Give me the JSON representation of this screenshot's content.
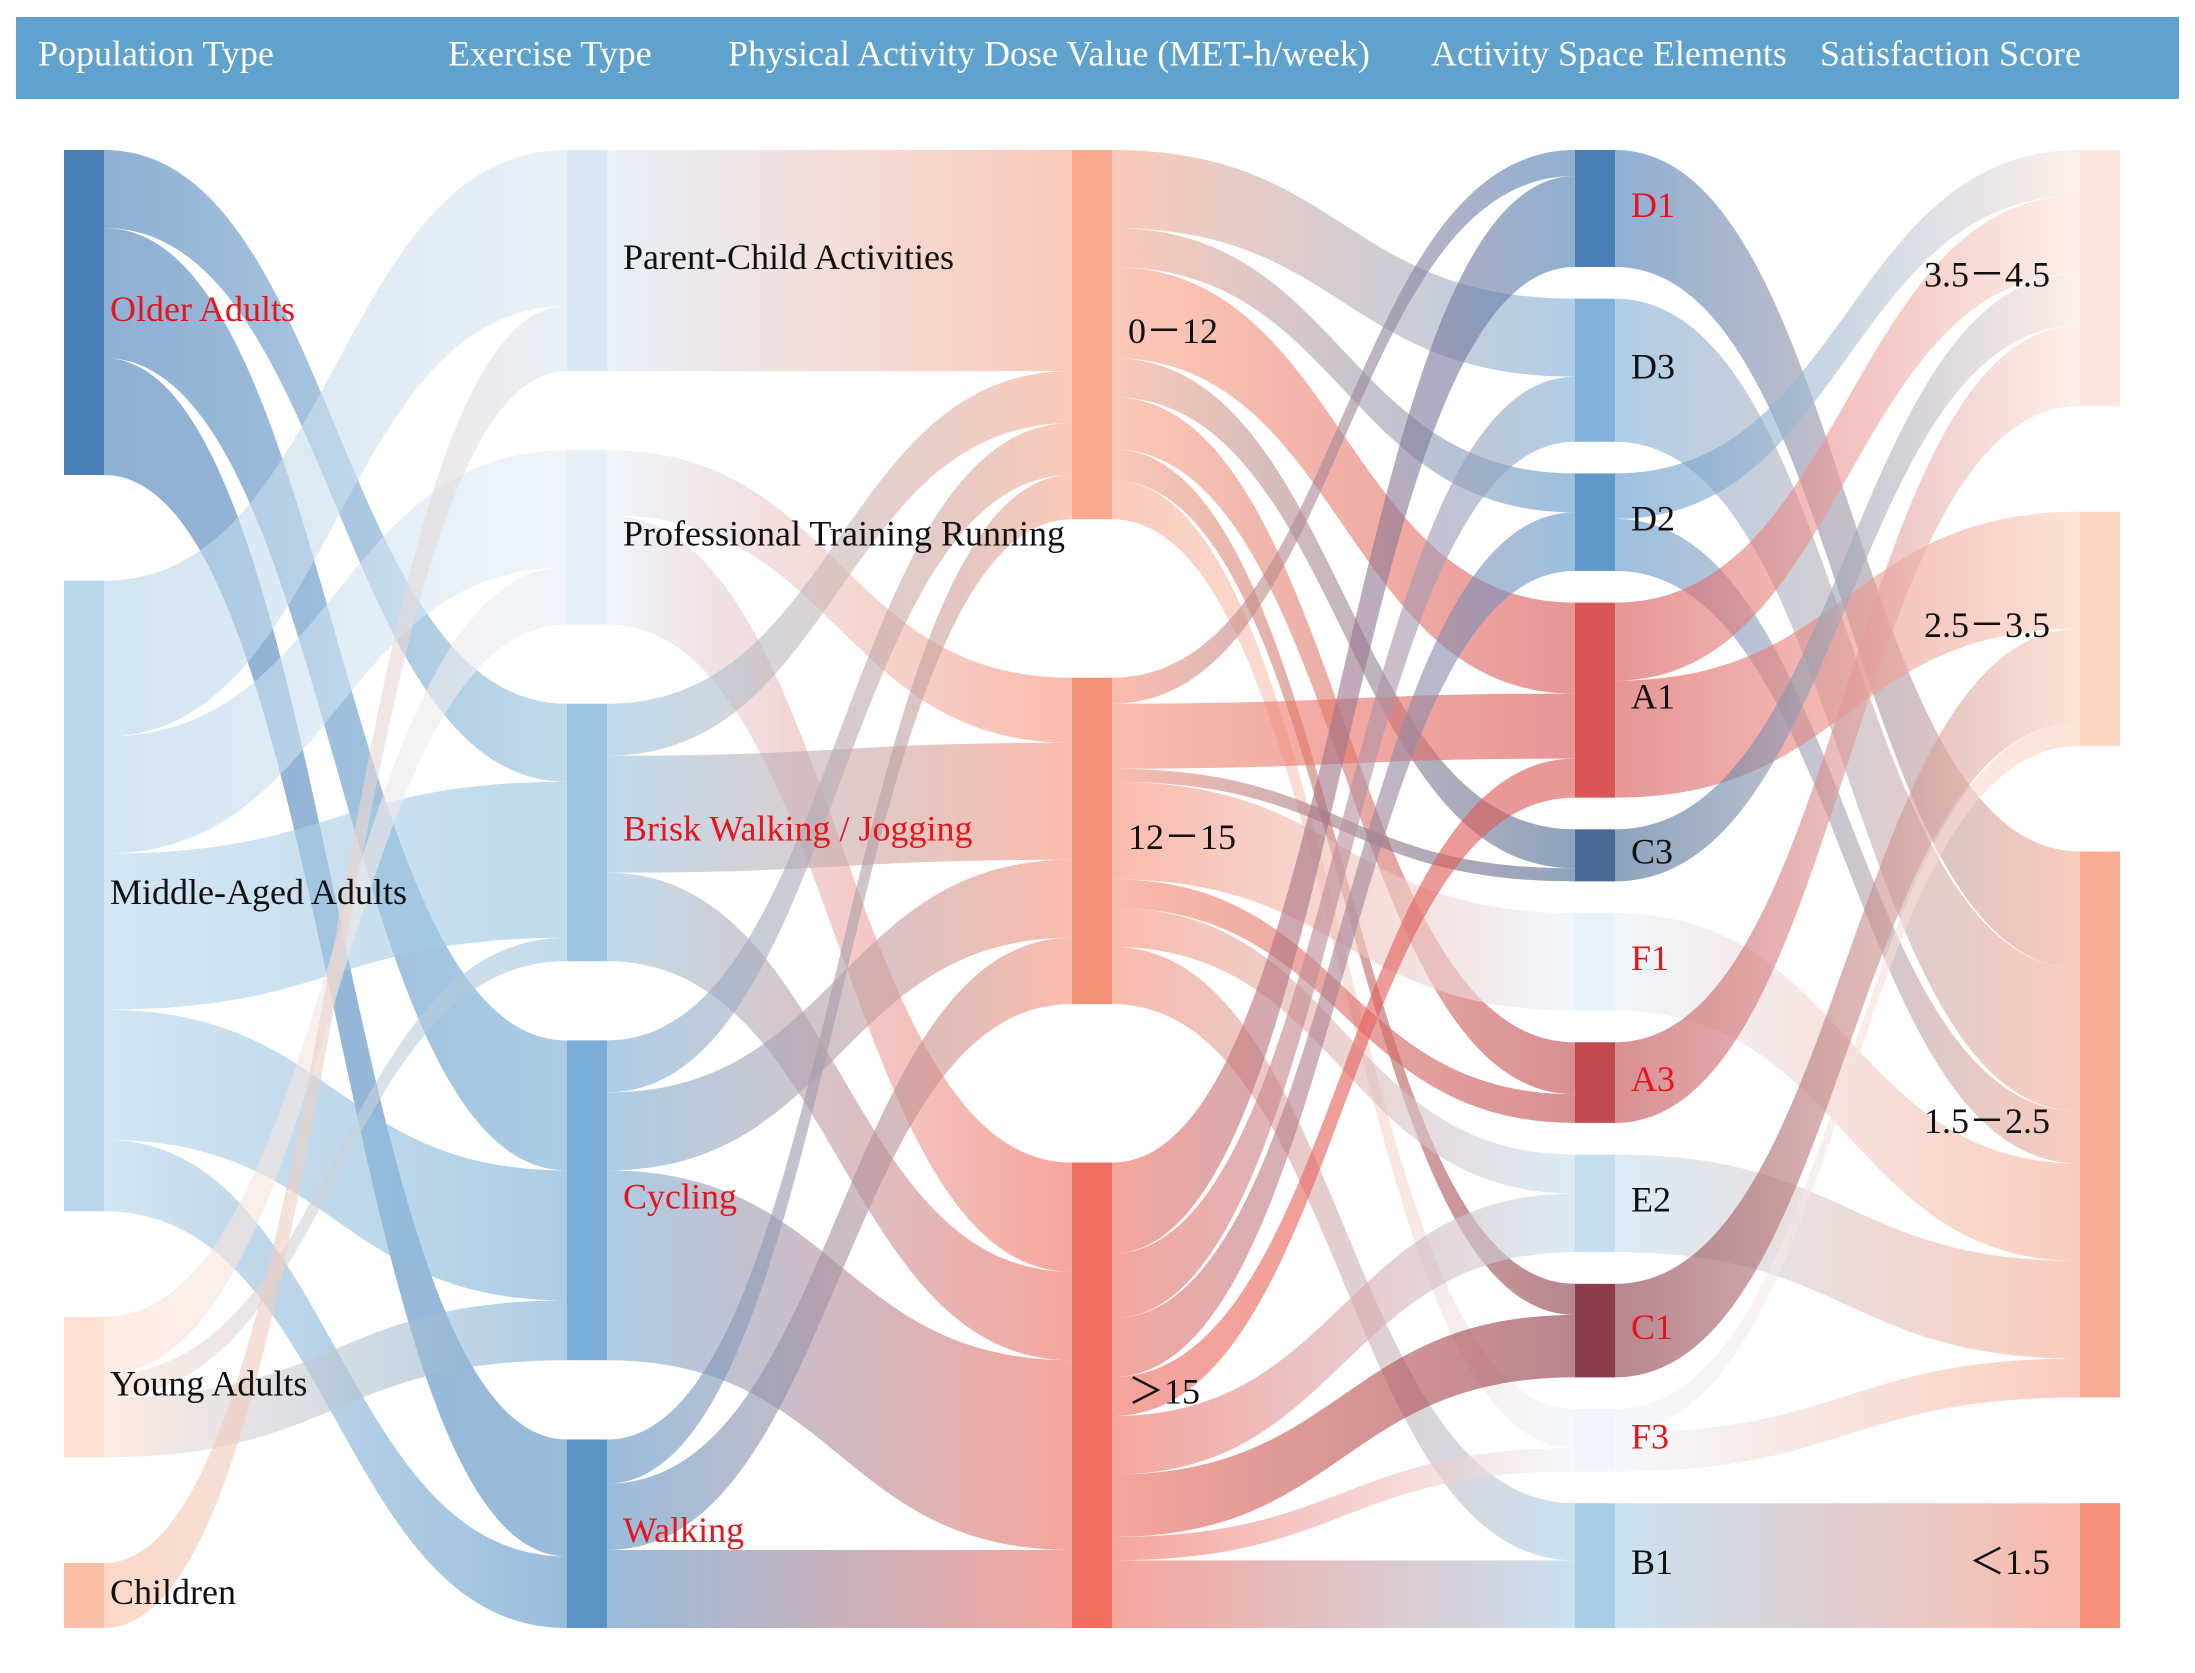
{
  "chart_data": {
    "type": "sankey",
    "columns": [
      {
        "title": "Population Type",
        "nodes": [
          {
            "name": "Older Adults",
            "color": "#4a7fb8",
            "label_color": "#e8141c"
          },
          {
            "name": "Middle-Aged Adults",
            "color": "#b8d6ea",
            "label_color": "#111111"
          },
          {
            "name": "Young Adults",
            "color": "#fde0d2",
            "label_color": "#111111"
          },
          {
            "name": "Children",
            "color": "#f9c0a6",
            "label_color": "#111111"
          }
        ]
      },
      {
        "title": "Exercise Type",
        "nodes": [
          {
            "name": "Parent-Child Activities",
            "color": "#dbe7f3",
            "label_color": "#111111"
          },
          {
            "name": "Professional Training Running",
            "color": "#e6eef7",
            "label_color": "#111111"
          },
          {
            "name": "Brisk Walking / Jogging",
            "color": "#9ac5e0",
            "label_color": "#e8141c"
          },
          {
            "name": "Cycling",
            "color": "#7aaed6",
            "label_color": "#e8141c"
          },
          {
            "name": "Walking",
            "color": "#5b93c6",
            "label_color": "#e8141c"
          }
        ]
      },
      {
        "title": "Physical Activity Dose Value  (MET-h/week)",
        "nodes": [
          {
            "name": "0－12",
            "color": "#f9a98e",
            "label_color": "#111111"
          },
          {
            "name": "12－15",
            "color": "#f7927a",
            "label_color": "#111111"
          },
          {
            "name": "＞15",
            "color": "#f06e60",
            "label_color": "#111111"
          }
        ]
      },
      {
        "title": "Activity Space Elements",
        "nodes": [
          {
            "name": "D1",
            "color": "#4a7fb8",
            "label_color": "#e8141c"
          },
          {
            "name": "D3",
            "color": "#7fb1d9",
            "label_color": "#111111"
          },
          {
            "name": "D2",
            "color": "#5f99cc",
            "label_color": "#111111"
          },
          {
            "name": "A1",
            "color": "#d95556",
            "label_color": "#111111"
          },
          {
            "name": "C3",
            "color": "#4a6a96",
            "label_color": "#111111"
          },
          {
            "name": "F1",
            "color": "#e9f1f9",
            "label_color": "#e8141c"
          },
          {
            "name": "A3",
            "color": "#c04a50",
            "label_color": "#e8141c"
          },
          {
            "name": "E2",
            "color": "#c6dff0",
            "label_color": "#111111"
          },
          {
            "name": "C1",
            "color": "#8c3c4a",
            "label_color": "#e8141c"
          },
          {
            "name": "F3",
            "color": "#eff5fb",
            "label_color": "#e8141c"
          },
          {
            "name": "B1",
            "color": "#a9cfe8",
            "label_color": "#111111"
          }
        ]
      },
      {
        "title": "Satisfaction Score",
        "nodes": [
          {
            "name": "3.5－4.5",
            "color": "#fde6dc",
            "label_color": "#111111"
          },
          {
            "name": "2.5－3.5",
            "color": "#fcd2c0",
            "label_color": "#111111"
          },
          {
            "name": "1.5－2.5",
            "color": "#f9ad94",
            "label_color": "#111111"
          },
          {
            "name": "＜1.5",
            "color": "#f7907a",
            "label_color": "#111111"
          }
        ]
      }
    ],
    "links": [
      {
        "source": "Older Adults",
        "target": "Brisk Walking / Jogging",
        "value": 60
      },
      {
        "source": "Older Adults",
        "target": "Cycling",
        "value": 100
      },
      {
        "source": "Older Adults",
        "target": "Walking",
        "value": 90
      },
      {
        "source": "Middle-Aged Adults",
        "target": "Parent-Child Activities",
        "value": 120
      },
      {
        "source": "Middle-Aged Adults",
        "target": "Professional Training Running",
        "value": 90
      },
      {
        "source": "Middle-Aged Adults",
        "target": "Brisk Walking / Jogging",
        "value": 120
      },
      {
        "source": "Middle-Aged Adults",
        "target": "Cycling",
        "value": 100
      },
      {
        "source": "Middle-Aged Adults",
        "target": "Walking",
        "value": 55
      },
      {
        "source": "Young Adults",
        "target": "Professional Training Running",
        "value": 44
      },
      {
        "source": "Young Adults",
        "target": "Brisk Walking / Jogging",
        "value": 18
      },
      {
        "source": "Young Adults",
        "target": "Cycling",
        "value": 46
      },
      {
        "source": "Children",
        "target": "Parent-Child Activities",
        "value": 50
      },
      {
        "source": "Parent-Child Activities",
        "target": "0－12",
        "value": 170
      },
      {
        "source": "Professional Training Running",
        "target": "12－15",
        "value": 50
      },
      {
        "source": "Professional Training Running",
        "target": "＞15",
        "value": 84
      },
      {
        "source": "Brisk Walking / Jogging",
        "target": "0－12",
        "value": 40
      },
      {
        "source": "Brisk Walking / Jogging",
        "target": "12－15",
        "value": 90
      },
      {
        "source": "Brisk Walking / Jogging",
        "target": "＞15",
        "value": 68
      },
      {
        "source": "Cycling",
        "target": "0－12",
        "value": 40
      },
      {
        "source": "Cycling",
        "target": "12－15",
        "value": 60
      },
      {
        "source": "Cycling",
        "target": "＞15",
        "value": 146
      },
      {
        "source": "Walking",
        "target": "0－12",
        "value": 34
      },
      {
        "source": "Walking",
        "target": "12－15",
        "value": 51
      },
      {
        "source": "Walking",
        "target": "＞15",
        "value": 60
      },
      {
        "source": "0－12",
        "target": "D3",
        "value": 60
      },
      {
        "source": "0－12",
        "target": "D2",
        "value": 30
      },
      {
        "source": "0－12",
        "target": "A1",
        "value": 70
      },
      {
        "source": "0－12",
        "target": "C3",
        "value": 30
      },
      {
        "source": "0－12",
        "target": "A3",
        "value": 40
      },
      {
        "source": "0－12",
        "target": "C1",
        "value": 24
      },
      {
        "source": "0－12",
        "target": "F3",
        "value": 30
      },
      {
        "source": "12－15",
        "target": "D1",
        "value": 20
      },
      {
        "source": "12－15",
        "target": "A1",
        "value": 50
      },
      {
        "source": "12－15",
        "target": "C3",
        "value": 10
      },
      {
        "source": "12－15",
        "target": "F1",
        "value": 75
      },
      {
        "source": "12－15",
        "target": "A3",
        "value": 22
      },
      {
        "source": "12－15",
        "target": "E2",
        "value": 30
      },
      {
        "source": "12－15",
        "target": "B1",
        "value": 44
      },
      {
        "source": "＞15",
        "target": "D1",
        "value": 70
      },
      {
        "source": "＞15",
        "target": "D3",
        "value": 50
      },
      {
        "source": "＞15",
        "target": "D2",
        "value": 45
      },
      {
        "source": "＞15",
        "target": "A1",
        "value": 30
      },
      {
        "source": "＞15",
        "target": "E2",
        "value": 45
      },
      {
        "source": "＞15",
        "target": "C1",
        "value": 48
      },
      {
        "source": "＞15",
        "target": "F3",
        "value": 18
      },
      {
        "source": "＞15",
        "target": "B1",
        "value": 52
      },
      {
        "source": "D1",
        "target": "1.5－2.5",
        "value": 90
      },
      {
        "source": "D3",
        "target": "1.5－2.5",
        "value": 110
      },
      {
        "source": "D2",
        "target": "3.5－4.5",
        "value": 35
      },
      {
        "source": "D2",
        "target": "1.5－2.5",
        "value": 40
      },
      {
        "source": "A1",
        "target": "3.5－4.5",
        "value": 60
      },
      {
        "source": "A1",
        "target": "2.5－3.5",
        "value": 90
      },
      {
        "source": "C3",
        "target": "3.5－4.5",
        "value": 40
      },
      {
        "source": "F1",
        "target": "1.5－2.5",
        "value": 75
      },
      {
        "source": "A3",
        "target": "3.5－4.5",
        "value": 62
      },
      {
        "source": "E2",
        "target": "1.5－2.5",
        "value": 75
      },
      {
        "source": "C1",
        "target": "2.5－3.5",
        "value": 72
      },
      {
        "source": "F3",
        "target": "2.5－3.5",
        "value": 18
      },
      {
        "source": "F3",
        "target": "1.5－2.5",
        "value": 30
      },
      {
        "source": "B1",
        "target": "＜1.5",
        "value": 96
      }
    ]
  }
}
